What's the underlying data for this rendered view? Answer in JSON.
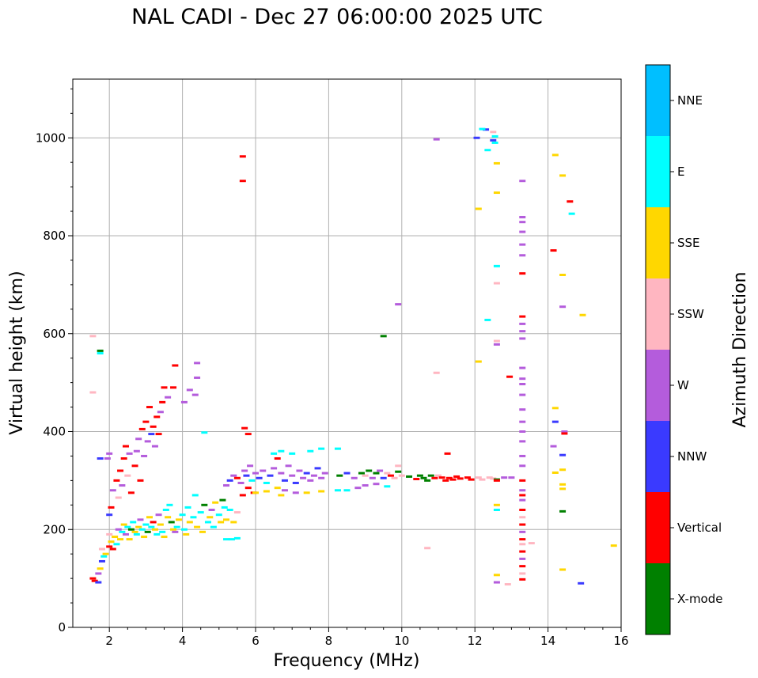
{
  "chart_data": {
    "type": "scatter",
    "title": "NAL CADI - Dec 27 06:00:00 2025 UTC",
    "xlabel": "Frequency (MHz)",
    "ylabel": "Virtual height (km)",
    "xlim": [
      1,
      16
    ],
    "ylim": [
      0,
      1120
    ],
    "xticks": [
      "2",
      "4",
      "6",
      "8",
      "10",
      "12",
      "14",
      "16"
    ],
    "yticks": [
      "0",
      "200",
      "400",
      "600",
      "800",
      "1000"
    ],
    "grid": true,
    "colorbar": {
      "title": "Azimuth Direction",
      "categories": [
        {
          "label": "X-mode",
          "color": "#008000"
        },
        {
          "label": "Vertical",
          "color": "#ff0000"
        },
        {
          "label": "NNW",
          "color": "#3a3aff"
        },
        {
          "label": "W",
          "color": "#b45cdc"
        },
        {
          "label": "SSW",
          "color": "#ffb6c1"
        },
        {
          "label": "SSE",
          "color": "#ffd700"
        },
        {
          "label": "E",
          "color": "#00ffff"
        },
        {
          "label": "NNE",
          "color": "#00bfff"
        }
      ]
    },
    "points": [
      [
        1.6,
        95,
        1
      ],
      [
        1.7,
        92,
        2
      ],
      [
        1.55,
        100,
        1
      ],
      [
        1.7,
        110,
        3
      ],
      [
        1.75,
        120,
        5
      ],
      [
        1.8,
        135,
        2
      ],
      [
        1.85,
        145,
        6
      ],
      [
        1.8,
        160,
        4
      ],
      [
        1.9,
        150,
        5
      ],
      [
        2.0,
        165,
        1
      ],
      [
        2.05,
        175,
        5
      ],
      [
        2.1,
        160,
        1
      ],
      [
        2.15,
        185,
        5
      ],
      [
        2.2,
        170,
        6
      ],
      [
        2.0,
        190,
        4
      ],
      [
        2.25,
        200,
        3
      ],
      [
        2.3,
        180,
        5
      ],
      [
        2.35,
        195,
        6
      ],
      [
        2.4,
        210,
        5
      ],
      [
        2.45,
        190,
        3
      ],
      [
        2.5,
        205,
        6
      ],
      [
        2.55,
        180,
        5
      ],
      [
        2.6,
        200,
        0
      ],
      [
        2.65,
        215,
        6
      ],
      [
        2.7,
        195,
        5
      ],
      [
        2.75,
        190,
        6
      ],
      [
        2.8,
        205,
        5
      ],
      [
        2.85,
        220,
        3
      ],
      [
        2.9,
        200,
        6
      ],
      [
        2.95,
        185,
        5
      ],
      [
        3.0,
        210,
        6
      ],
      [
        3.05,
        195,
        0
      ],
      [
        3.1,
        225,
        5
      ],
      [
        3.15,
        205,
        6
      ],
      [
        3.2,
        215,
        1
      ],
      [
        3.25,
        200,
        5
      ],
      [
        3.3,
        190,
        6
      ],
      [
        3.35,
        230,
        3
      ],
      [
        3.4,
        210,
        5
      ],
      [
        3.45,
        195,
        6
      ],
      [
        3.5,
        185,
        5
      ],
      [
        3.55,
        240,
        6
      ],
      [
        3.6,
        225,
        5
      ],
      [
        3.65,
        250,
        6
      ],
      [
        3.7,
        215,
        0
      ],
      [
        3.75,
        200,
        5
      ],
      [
        3.8,
        195,
        3
      ],
      [
        3.85,
        205,
        6
      ],
      [
        3.9,
        220,
        5
      ],
      [
        4.0,
        230,
        6
      ],
      [
        4.05,
        200,
        6
      ],
      [
        4.1,
        190,
        5
      ],
      [
        4.15,
        245,
        6
      ],
      [
        4.2,
        215,
        5
      ],
      [
        4.3,
        225,
        6
      ],
      [
        4.35,
        270,
        6
      ],
      [
        4.4,
        205,
        5
      ],
      [
        4.5,
        235,
        6
      ],
      [
        4.55,
        195,
        5
      ],
      [
        4.6,
        250,
        0
      ],
      [
        4.7,
        215,
        6
      ],
      [
        4.75,
        225,
        5
      ],
      [
        4.8,
        240,
        3
      ],
      [
        4.85,
        205,
        6
      ],
      [
        4.9,
        255,
        5
      ],
      [
        5.0,
        230,
        6
      ],
      [
        5.05,
        215,
        5
      ],
      [
        5.1,
        260,
        0
      ],
      [
        5.15,
        245,
        6
      ],
      [
        5.2,
        220,
        5
      ],
      [
        5.3,
        240,
        6
      ],
      [
        5.4,
        215,
        5
      ],
      [
        5.5,
        235,
        4
      ],
      [
        5.2,
        180,
        6
      ],
      [
        5.35,
        180,
        6
      ],
      [
        5.5,
        182,
        6
      ],
      [
        2.0,
        230,
        2
      ],
      [
        2.05,
        245,
        1
      ],
      [
        2.1,
        280,
        3
      ],
      [
        2.2,
        300,
        1
      ],
      [
        2.25,
        265,
        4
      ],
      [
        2.3,
        320,
        1
      ],
      [
        2.35,
        290,
        3
      ],
      [
        2.4,
        345,
        1
      ],
      [
        2.45,
        370,
        1
      ],
      [
        2.5,
        310,
        4
      ],
      [
        2.55,
        355,
        3
      ],
      [
        2.6,
        275,
        1
      ],
      [
        2.7,
        330,
        1
      ],
      [
        2.75,
        360,
        3
      ],
      [
        2.8,
        385,
        3
      ],
      [
        2.85,
        300,
        1
      ],
      [
        2.9,
        405,
        1
      ],
      [
        2.95,
        350,
        3
      ],
      [
        3.0,
        420,
        1
      ],
      [
        3.05,
        380,
        3
      ],
      [
        3.1,
        450,
        1
      ],
      [
        3.15,
        395,
        2
      ],
      [
        3.2,
        410,
        1
      ],
      [
        3.25,
        370,
        3
      ],
      [
        3.3,
        430,
        1
      ],
      [
        3.35,
        395,
        1
      ],
      [
        3.4,
        440,
        3
      ],
      [
        3.45,
        460,
        1
      ],
      [
        3.5,
        490,
        1
      ],
      [
        3.6,
        470,
        3
      ],
      [
        3.75,
        490,
        1
      ],
      [
        3.8,
        535,
        1
      ],
      [
        4.05,
        460,
        3
      ],
      [
        4.2,
        485,
        3
      ],
      [
        4.35,
        475,
        3
      ],
      [
        4.4,
        510,
        3
      ],
      [
        4.4,
        540,
        3
      ],
      [
        2.0,
        355,
        3
      ],
      [
        1.95,
        345,
        3
      ],
      [
        1.75,
        345,
        2
      ],
      [
        1.55,
        595,
        4
      ],
      [
        1.55,
        480,
        4
      ],
      [
        1.75,
        565,
        0
      ],
      [
        1.75,
        560,
        6
      ],
      [
        5.2,
        290,
        3
      ],
      [
        5.3,
        300,
        2
      ],
      [
        5.4,
        310,
        3
      ],
      [
        5.5,
        305,
        1
      ],
      [
        5.6,
        295,
        3
      ],
      [
        5.7,
        320,
        3
      ],
      [
        5.75,
        310,
        2
      ],
      [
        5.8,
        285,
        1
      ],
      [
        5.85,
        330,
        3
      ],
      [
        5.9,
        300,
        6
      ],
      [
        5.95,
        275,
        1
      ],
      [
        6.0,
        315,
        3
      ],
      [
        6.1,
        305,
        2
      ],
      [
        6.2,
        320,
        3
      ],
      [
        6.3,
        295,
        6
      ],
      [
        6.4,
        310,
        2
      ],
      [
        6.5,
        325,
        3
      ],
      [
        6.6,
        285,
        5
      ],
      [
        6.7,
        315,
        3
      ],
      [
        6.8,
        300,
        2
      ],
      [
        6.9,
        330,
        3
      ],
      [
        7.0,
        310,
        3
      ],
      [
        7.1,
        295,
        2
      ],
      [
        7.2,
        320,
        3
      ],
      [
        7.3,
        305,
        3
      ],
      [
        7.4,
        315,
        2
      ],
      [
        7.5,
        300,
        3
      ],
      [
        7.6,
        310,
        3
      ],
      [
        7.7,
        325,
        2
      ],
      [
        7.8,
        305,
        3
      ],
      [
        7.9,
        315,
        3
      ],
      [
        6.5,
        355,
        6
      ],
      [
        6.6,
        345,
        1
      ],
      [
        6.7,
        360,
        6
      ],
      [
        7.0,
        355,
        6
      ],
      [
        7.5,
        360,
        6
      ],
      [
        7.8,
        365,
        6
      ],
      [
        8.25,
        365,
        6
      ],
      [
        8.25,
        280,
        6
      ],
      [
        6.8,
        280,
        3
      ],
      [
        7.1,
        275,
        3
      ],
      [
        6.3,
        278,
        5
      ],
      [
        6.0,
        275,
        5
      ],
      [
        7.4,
        275,
        5
      ],
      [
        7.8,
        278,
        5
      ],
      [
        5.7,
        407,
        1
      ],
      [
        5.8,
        395,
        1
      ],
      [
        4.6,
        398,
        6
      ],
      [
        5.65,
        270,
        1
      ],
      [
        6.7,
        270,
        5
      ],
      [
        8.3,
        310,
        0
      ],
      [
        8.5,
        315,
        2
      ],
      [
        8.7,
        305,
        3
      ],
      [
        8.9,
        315,
        0
      ],
      [
        9.0,
        310,
        4
      ],
      [
        9.1,
        320,
        0
      ],
      [
        9.2,
        305,
        3
      ],
      [
        9.3,
        315,
        0
      ],
      [
        9.4,
        320,
        3
      ],
      [
        9.5,
        305,
        2
      ],
      [
        9.6,
        315,
        4
      ],
      [
        9.7,
        310,
        1
      ],
      [
        9.8,
        305,
        4
      ],
      [
        9.9,
        318,
        0
      ],
      [
        10.0,
        310,
        4
      ],
      [
        10.2,
        308,
        0
      ],
      [
        10.4,
        303,
        1
      ],
      [
        10.5,
        310,
        0
      ],
      [
        10.6,
        305,
        0
      ],
      [
        10.7,
        300,
        0
      ],
      [
        10.8,
        310,
        0
      ],
      [
        10.9,
        305,
        1
      ],
      [
        11.0,
        310,
        4
      ],
      [
        11.1,
        306,
        1
      ],
      [
        11.2,
        300,
        1
      ],
      [
        11.3,
        305,
        1
      ],
      [
        11.4,
        302,
        1
      ],
      [
        11.5,
        308,
        1
      ],
      [
        11.6,
        304,
        1
      ],
      [
        11.8,
        306,
        1
      ],
      [
        11.9,
        302,
        1
      ],
      [
        12.1,
        306,
        4
      ],
      [
        12.2,
        302,
        4
      ],
      [
        12.4,
        306,
        4
      ],
      [
        12.5,
        304,
        4
      ],
      [
        12.6,
        302,
        0
      ],
      [
        12.8,
        306,
        3
      ],
      [
        13.0,
        306,
        3
      ],
      [
        9.0,
        290,
        3
      ],
      [
        8.8,
        285,
        3
      ],
      [
        9.3,
        293,
        3
      ],
      [
        8.5,
        280,
        6
      ],
      [
        9.9,
        330,
        4
      ],
      [
        9.6,
        288,
        6
      ],
      [
        10.7,
        162,
        4
      ],
      [
        11.25,
        355,
        1
      ],
      [
        9.9,
        660,
        3
      ],
      [
        9.5,
        595,
        0
      ],
      [
        10.95,
        520,
        4
      ],
      [
        10.95,
        997,
        3
      ],
      [
        5.65,
        962,
        1
      ],
      [
        5.65,
        912,
        1
      ],
      [
        12.1,
        855,
        5
      ],
      [
        12.1,
        543,
        5
      ],
      [
        12.3,
        1017,
        2
      ],
      [
        12.5,
        1012,
        4
      ],
      [
        12.55,
        1003,
        6
      ],
      [
        12.5,
        995,
        2
      ],
      [
        12.55,
        990,
        6
      ],
      [
        12.35,
        975,
        6
      ],
      [
        12.6,
        948,
        5
      ],
      [
        12.6,
        888,
        5
      ],
      [
        12.6,
        738,
        6
      ],
      [
        12.6,
        703,
        4
      ],
      [
        12.35,
        628,
        6
      ],
      [
        12.6,
        585,
        4
      ],
      [
        12.6,
        578,
        3
      ],
      [
        12.95,
        512,
        1
      ],
      [
        12.6,
        300,
        1
      ],
      [
        12.6,
        250,
        5
      ],
      [
        12.6,
        240,
        6
      ],
      [
        12.6,
        107,
        5
      ],
      [
        12.6,
        92,
        3
      ],
      [
        12.9,
        88,
        4
      ],
      [
        12.05,
        1000,
        2
      ],
      [
        12.2,
        1018,
        6
      ],
      [
        13.3,
        912,
        3
      ],
      [
        13.3,
        838,
        3
      ],
      [
        13.3,
        828,
        3
      ],
      [
        13.3,
        808,
        3
      ],
      [
        13.3,
        782,
        3
      ],
      [
        13.3,
        760,
        3
      ],
      [
        13.3,
        723,
        1
      ],
      [
        13.3,
        635,
        1
      ],
      [
        13.3,
        620,
        3
      ],
      [
        13.3,
        605,
        3
      ],
      [
        13.3,
        590,
        3
      ],
      [
        13.3,
        530,
        3
      ],
      [
        13.3,
        508,
        3
      ],
      [
        13.3,
        497,
        3
      ],
      [
        13.3,
        475,
        3
      ],
      [
        13.3,
        445,
        3
      ],
      [
        13.3,
        420,
        3
      ],
      [
        13.3,
        400,
        3
      ],
      [
        13.3,
        380,
        3
      ],
      [
        13.3,
        350,
        3
      ],
      [
        13.3,
        330,
        3
      ],
      [
        13.3,
        300,
        1
      ],
      [
        13.3,
        280,
        3
      ],
      [
        13.3,
        270,
        1
      ],
      [
        13.3,
        260,
        3
      ],
      [
        13.3,
        240,
        1
      ],
      [
        13.3,
        225,
        4
      ],
      [
        13.3,
        210,
        1
      ],
      [
        13.3,
        195,
        3
      ],
      [
        13.3,
        180,
        1
      ],
      [
        13.3,
        170,
        4
      ],
      [
        13.3,
        155,
        1
      ],
      [
        13.3,
        140,
        3
      ],
      [
        13.3,
        125,
        1
      ],
      [
        13.3,
        110,
        4
      ],
      [
        13.3,
        98,
        1
      ],
      [
        13.55,
        172,
        4
      ],
      [
        14.2,
        965,
        5
      ],
      [
        14.4,
        923,
        5
      ],
      [
        14.6,
        870,
        1
      ],
      [
        14.65,
        845,
        6
      ],
      [
        14.15,
        770,
        1
      ],
      [
        14.4,
        720,
        5
      ],
      [
        14.4,
        655,
        3
      ],
      [
        14.95,
        638,
        5
      ],
      [
        14.2,
        448,
        5
      ],
      [
        14.2,
        420,
        2
      ],
      [
        14.15,
        370,
        3
      ],
      [
        14.45,
        400,
        3
      ],
      [
        14.45,
        396,
        1
      ],
      [
        14.4,
        352,
        2
      ],
      [
        14.4,
        322,
        5
      ],
      [
        14.2,
        316,
        5
      ],
      [
        14.4,
        292,
        5
      ],
      [
        14.4,
        283,
        5
      ],
      [
        14.4,
        237,
        0
      ],
      [
        14.4,
        118,
        5
      ],
      [
        14.9,
        90,
        2
      ],
      [
        15.8,
        167,
        5
      ]
    ]
  }
}
